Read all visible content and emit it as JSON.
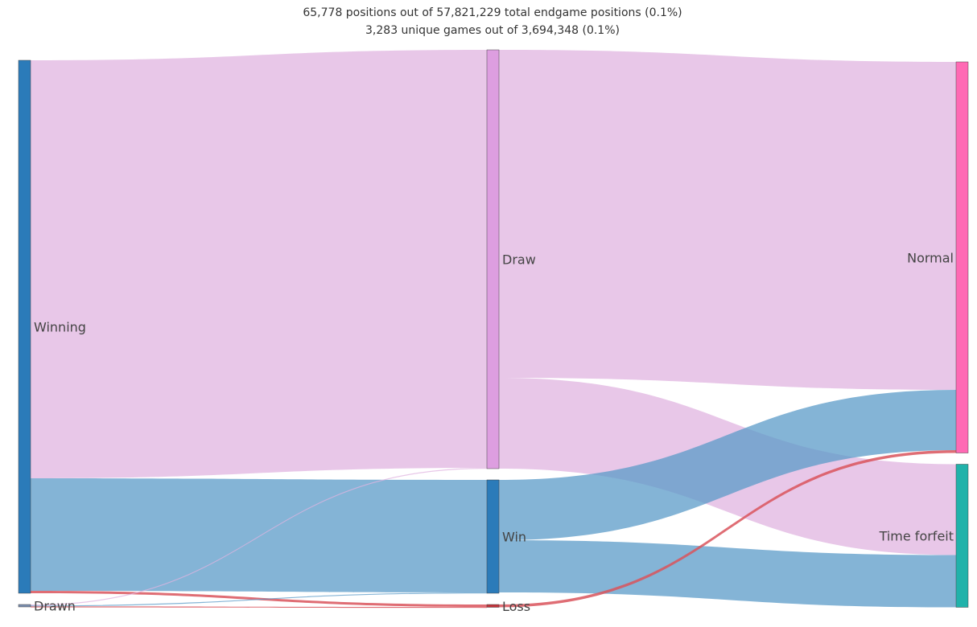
{
  "chart_data": {
    "type": "sankey",
    "title_lines": [
      "65,778 positions out of 57,821,229 total endgame positions (0.1%)",
      "3,283 unique games out of 3,694,348 (0.1%)"
    ],
    "nodes": [
      {
        "id": "winning",
        "label": "Winning",
        "stage": 0,
        "color": "#2b7bb9"
      },
      {
        "id": "drawn",
        "label": "Drawn",
        "stage": 0,
        "color": "#7b8fb0"
      },
      {
        "id": "draw",
        "label": "Draw",
        "stage": 1,
        "color": "#dd9ee0"
      },
      {
        "id": "win",
        "label": "Win",
        "stage": 1,
        "color": "#2b7bb9"
      },
      {
        "id": "loss",
        "label": "Loss",
        "stage": 1,
        "color": "#c0333a"
      },
      {
        "id": "normal",
        "label": "Normal",
        "stage": 2,
        "color": "#ff69b4"
      },
      {
        "id": "time_forfeit",
        "label": "Time forfeit",
        "stage": 2,
        "color": "#20b2aa"
      }
    ],
    "links": [
      {
        "source": "winning",
        "target": "draw",
        "value": 520,
        "color": "#e0b4e0"
      },
      {
        "source": "winning",
        "target": "win",
        "value": 140,
        "color": "#5b9bc8"
      },
      {
        "source": "winning",
        "target": "loss",
        "value": 3,
        "color": "#d9535c"
      },
      {
        "source": "drawn",
        "target": "draw",
        "value": 1,
        "color": "#e0b4e0"
      },
      {
        "source": "drawn",
        "target": "win",
        "value": 1,
        "color": "#5b9bc8"
      },
      {
        "source": "drawn",
        "target": "loss",
        "value": 0.5,
        "color": "#d9535c"
      },
      {
        "source": "draw",
        "target": "normal",
        "value": 408,
        "color": "#e0b4e0"
      },
      {
        "source": "draw",
        "target": "time_forfeit",
        "value": 113,
        "color": "#e0b4e0"
      },
      {
        "source": "win",
        "target": "normal",
        "value": 75,
        "color": "#5b9bc8"
      },
      {
        "source": "win",
        "target": "time_forfeit",
        "value": 65,
        "color": "#5b9bc8"
      },
      {
        "source": "loss",
        "target": "normal",
        "value": 3.5,
        "color": "#d9535c"
      }
    ]
  }
}
